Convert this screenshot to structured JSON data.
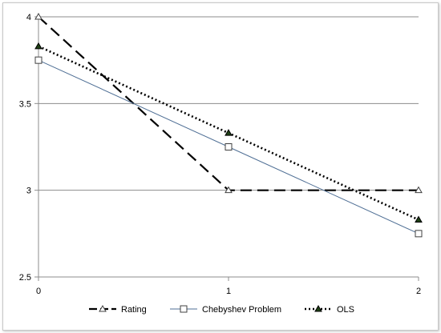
{
  "chart_data": {
    "type": "line",
    "x": [
      0,
      1,
      2
    ],
    "x_ticks": [
      "0",
      "1",
      "2"
    ],
    "y_ticks": [
      "2.5",
      "3",
      "3.5",
      "4"
    ],
    "ylim": [
      2.5,
      4
    ],
    "xlim": [
      0,
      2
    ],
    "grid": "horizontal",
    "legend_position": "bottom",
    "series": [
      {
        "name": "Rating",
        "values": [
          4.0,
          3.0,
          3.0
        ],
        "color": "#000000",
        "line": "long-dash",
        "marker": "open-triangle"
      },
      {
        "name": "Chebyshev Problem",
        "values": [
          3.75,
          3.25,
          2.75
        ],
        "color": "#4f6f95",
        "line": "solid",
        "marker": "open-square"
      },
      {
        "name": "OLS",
        "values": [
          3.83,
          3.33,
          2.83
        ],
        "color": "#000000",
        "line": "dotted",
        "marker": "filled-triangle",
        "marker_fill": "#1e3f14"
      }
    ]
  }
}
